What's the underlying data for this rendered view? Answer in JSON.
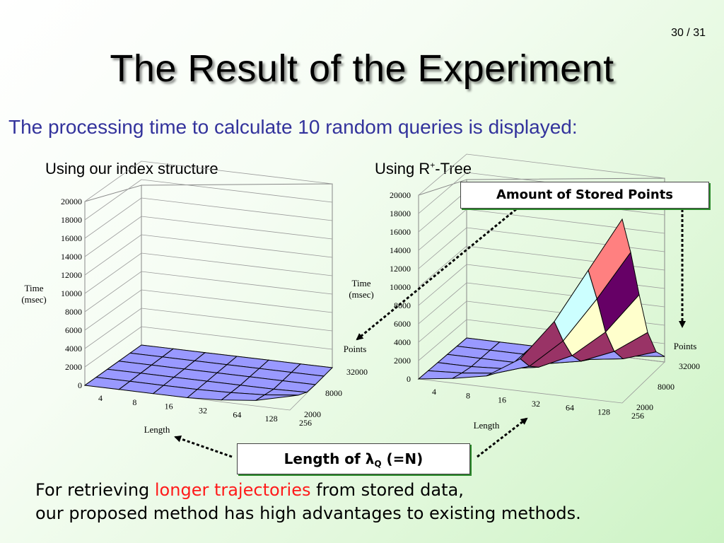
{
  "slide": {
    "page_number": "30 / 31",
    "title": "The Result of the Experiment",
    "subtitle": "The processing time to calculate 10 random queries is displayed:",
    "chart_left_caption": "Using our index structure",
    "chart_right_caption_main": "Using R",
    "chart_right_caption_sup": "+",
    "chart_right_caption_tail": "-Tree",
    "callout_points": "Amount of Stored Points",
    "callout_length_prefix": "Length of ",
    "callout_length_symbol": "λ",
    "callout_length_subscript": "Q",
    "callout_length_suffix": " (=N)",
    "conclusion_line1_a": "For retrieving ",
    "conclusion_line1_highlight": "longer trajectories",
    "conclusion_line1_b": " from stored data,",
    "conclusion_line2": "our proposed method has high advantages to existing methods."
  },
  "colors": {
    "surface_base": "#9999ff",
    "surface_edge": "#000000",
    "highlight_text": "#ff1a1a",
    "subtitle_text": "#33339c",
    "band_colors": [
      "#9999ff",
      "#993366",
      "#ffffcc",
      "#ccffff",
      "#660066",
      "#ff8080",
      "#0066cc",
      "#ccccff"
    ]
  },
  "chart_data": [
    {
      "type": "surface3d",
      "ylabel": "Time\n(msec)",
      "xlabel": "Length",
      "zlabel": "Points",
      "x_categories": [
        "4",
        "8",
        "16",
        "32",
        "64",
        "128",
        "256"
      ],
      "z_categories": [
        "2000",
        "8000",
        "32000"
      ],
      "z_rows": 6,
      "ylim": [
        0,
        20000
      ],
      "ytick_labels": [
        "0",
        "2000",
        "4000",
        "6000",
        "8000",
        "10000",
        "12000",
        "14000",
        "16000",
        "18000",
        "20000"
      ],
      "band_step": 2500,
      "values": [
        [
          0,
          0,
          0,
          0,
          0,
          0,
          0
        ],
        [
          0,
          0,
          0,
          0,
          0,
          0,
          0
        ],
        [
          0,
          0,
          0,
          0,
          0,
          0,
          0
        ],
        [
          0,
          0,
          0,
          0,
          0,
          0,
          100
        ],
        [
          0,
          0,
          0,
          0,
          100,
          300,
          700
        ],
        [
          0,
          0,
          0,
          0,
          200,
          600,
          1500
        ]
      ]
    },
    {
      "type": "surface3d",
      "ylabel": "Time\n(msec)",
      "xlabel": "Length",
      "zlabel": "Points",
      "x_categories": [
        "4",
        "8",
        "16",
        "32",
        "64",
        "128",
        "256"
      ],
      "z_categories": [
        "2000",
        "8000",
        "32000"
      ],
      "z_rows": 6,
      "ylim": [
        0,
        20000
      ],
      "ytick_labels": [
        "0",
        "2000",
        "4000",
        "6000",
        "8000",
        "10000",
        "12000",
        "14000",
        "16000",
        "18000",
        "20000"
      ],
      "band_step": 2500,
      "values": [
        [
          0,
          0,
          0,
          0,
          0,
          200,
          600
        ],
        [
          0,
          0,
          0,
          0,
          300,
          800,
          2000
        ],
        [
          0,
          0,
          0,
          300,
          1000,
          2500,
          5000
        ],
        [
          0,
          0,
          200,
          800,
          2500,
          5500,
          10000
        ],
        [
          0,
          200,
          600,
          1800,
          5000,
          10000,
          15500
        ],
        [
          0,
          500,
          1200,
          3500,
          8000,
          14000,
          20000
        ]
      ]
    }
  ]
}
